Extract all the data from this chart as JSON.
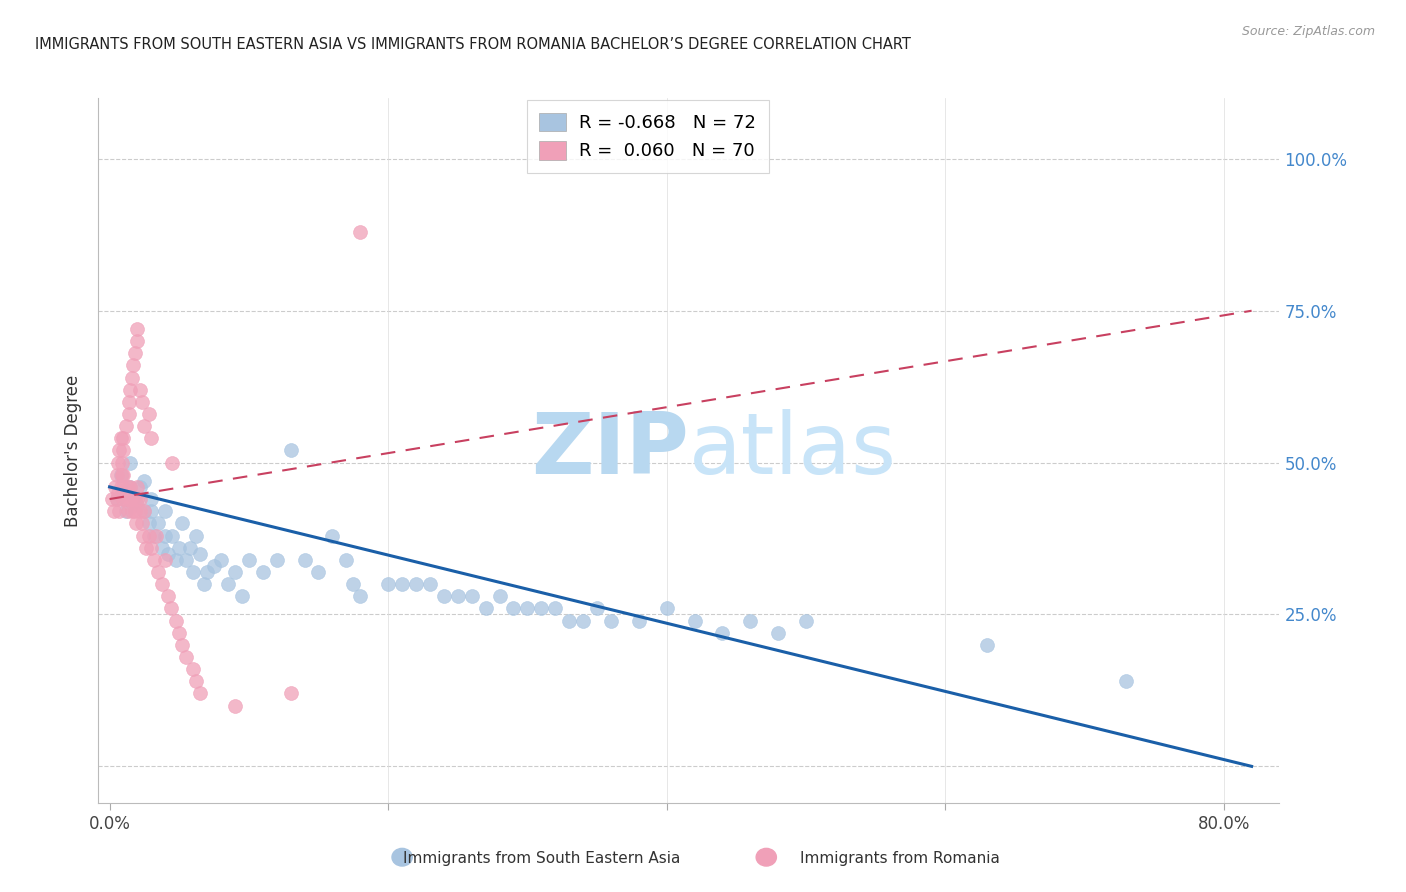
{
  "title": "IMMIGRANTS FROM SOUTH EASTERN ASIA VS IMMIGRANTS FROM ROMANIA BACHELOR’S DEGREE CORRELATION CHART",
  "source": "Source: ZipAtlas.com",
  "ylabel": "Bachelor's Degree",
  "color_blue": "#a8c4e0",
  "color_pink": "#f0a0b8",
  "trendline_blue": "#1a5fa8",
  "trendline_pink": "#c84060",
  "watermark_color": "#cce4f4",
  "legend_r1": "R = -0.668",
  "legend_n1": "N = 72",
  "legend_r2": "R =  0.060",
  "legend_n2": "N = 70",
  "xlim": [
    -0.008,
    0.84
  ],
  "ylim": [
    -0.06,
    1.1
  ],
  "blue_x": [
    0.005,
    0.008,
    0.01,
    0.012,
    0.015,
    0.015,
    0.018,
    0.02,
    0.022,
    0.025,
    0.025,
    0.028,
    0.03,
    0.03,
    0.032,
    0.035,
    0.038,
    0.04,
    0.04,
    0.042,
    0.045,
    0.048,
    0.05,
    0.052,
    0.055,
    0.058,
    0.06,
    0.062,
    0.065,
    0.068,
    0.07,
    0.075,
    0.08,
    0.085,
    0.09,
    0.095,
    0.1,
    0.11,
    0.12,
    0.13,
    0.14,
    0.15,
    0.16,
    0.17,
    0.175,
    0.18,
    0.2,
    0.21,
    0.22,
    0.23,
    0.24,
    0.25,
    0.26,
    0.27,
    0.28,
    0.29,
    0.3,
    0.31,
    0.32,
    0.33,
    0.34,
    0.35,
    0.36,
    0.38,
    0.4,
    0.42,
    0.44,
    0.46,
    0.48,
    0.5,
    0.63,
    0.73
  ],
  "blue_y": [
    0.44,
    0.48,
    0.45,
    0.42,
    0.46,
    0.5,
    0.44,
    0.43,
    0.46,
    0.42,
    0.47,
    0.4,
    0.42,
    0.44,
    0.38,
    0.4,
    0.36,
    0.38,
    0.42,
    0.35,
    0.38,
    0.34,
    0.36,
    0.4,
    0.34,
    0.36,
    0.32,
    0.38,
    0.35,
    0.3,
    0.32,
    0.33,
    0.34,
    0.3,
    0.32,
    0.28,
    0.34,
    0.32,
    0.34,
    0.52,
    0.34,
    0.32,
    0.38,
    0.34,
    0.3,
    0.28,
    0.3,
    0.3,
    0.3,
    0.3,
    0.28,
    0.28,
    0.28,
    0.26,
    0.28,
    0.26,
    0.26,
    0.26,
    0.26,
    0.24,
    0.24,
    0.26,
    0.24,
    0.24,
    0.26,
    0.24,
    0.22,
    0.24,
    0.22,
    0.24,
    0.2,
    0.14
  ],
  "pink_x": [
    0.002,
    0.003,
    0.004,
    0.005,
    0.005,
    0.006,
    0.006,
    0.007,
    0.007,
    0.008,
    0.008,
    0.009,
    0.009,
    0.01,
    0.01,
    0.01,
    0.01,
    0.01,
    0.012,
    0.012,
    0.013,
    0.013,
    0.013,
    0.014,
    0.014,
    0.015,
    0.015,
    0.015,
    0.016,
    0.016,
    0.017,
    0.017,
    0.018,
    0.018,
    0.019,
    0.02,
    0.02,
    0.02,
    0.02,
    0.022,
    0.022,
    0.022,
    0.023,
    0.023,
    0.024,
    0.025,
    0.025,
    0.026,
    0.028,
    0.028,
    0.03,
    0.03,
    0.032,
    0.033,
    0.035,
    0.038,
    0.04,
    0.042,
    0.044,
    0.045,
    0.048,
    0.05,
    0.052,
    0.055,
    0.06,
    0.062,
    0.065,
    0.09,
    0.13,
    0.18
  ],
  "pink_y": [
    0.44,
    0.42,
    0.46,
    0.48,
    0.44,
    0.5,
    0.45,
    0.52,
    0.42,
    0.46,
    0.54,
    0.48,
    0.5,
    0.44,
    0.46,
    0.48,
    0.52,
    0.54,
    0.44,
    0.56,
    0.42,
    0.44,
    0.46,
    0.58,
    0.6,
    0.44,
    0.46,
    0.62,
    0.42,
    0.64,
    0.44,
    0.66,
    0.42,
    0.68,
    0.4,
    0.44,
    0.46,
    0.7,
    0.72,
    0.42,
    0.44,
    0.62,
    0.4,
    0.6,
    0.38,
    0.42,
    0.56,
    0.36,
    0.38,
    0.58,
    0.36,
    0.54,
    0.34,
    0.38,
    0.32,
    0.3,
    0.34,
    0.28,
    0.26,
    0.5,
    0.24,
    0.22,
    0.2,
    0.18,
    0.16,
    0.14,
    0.12,
    0.1,
    0.12,
    0.88
  ]
}
